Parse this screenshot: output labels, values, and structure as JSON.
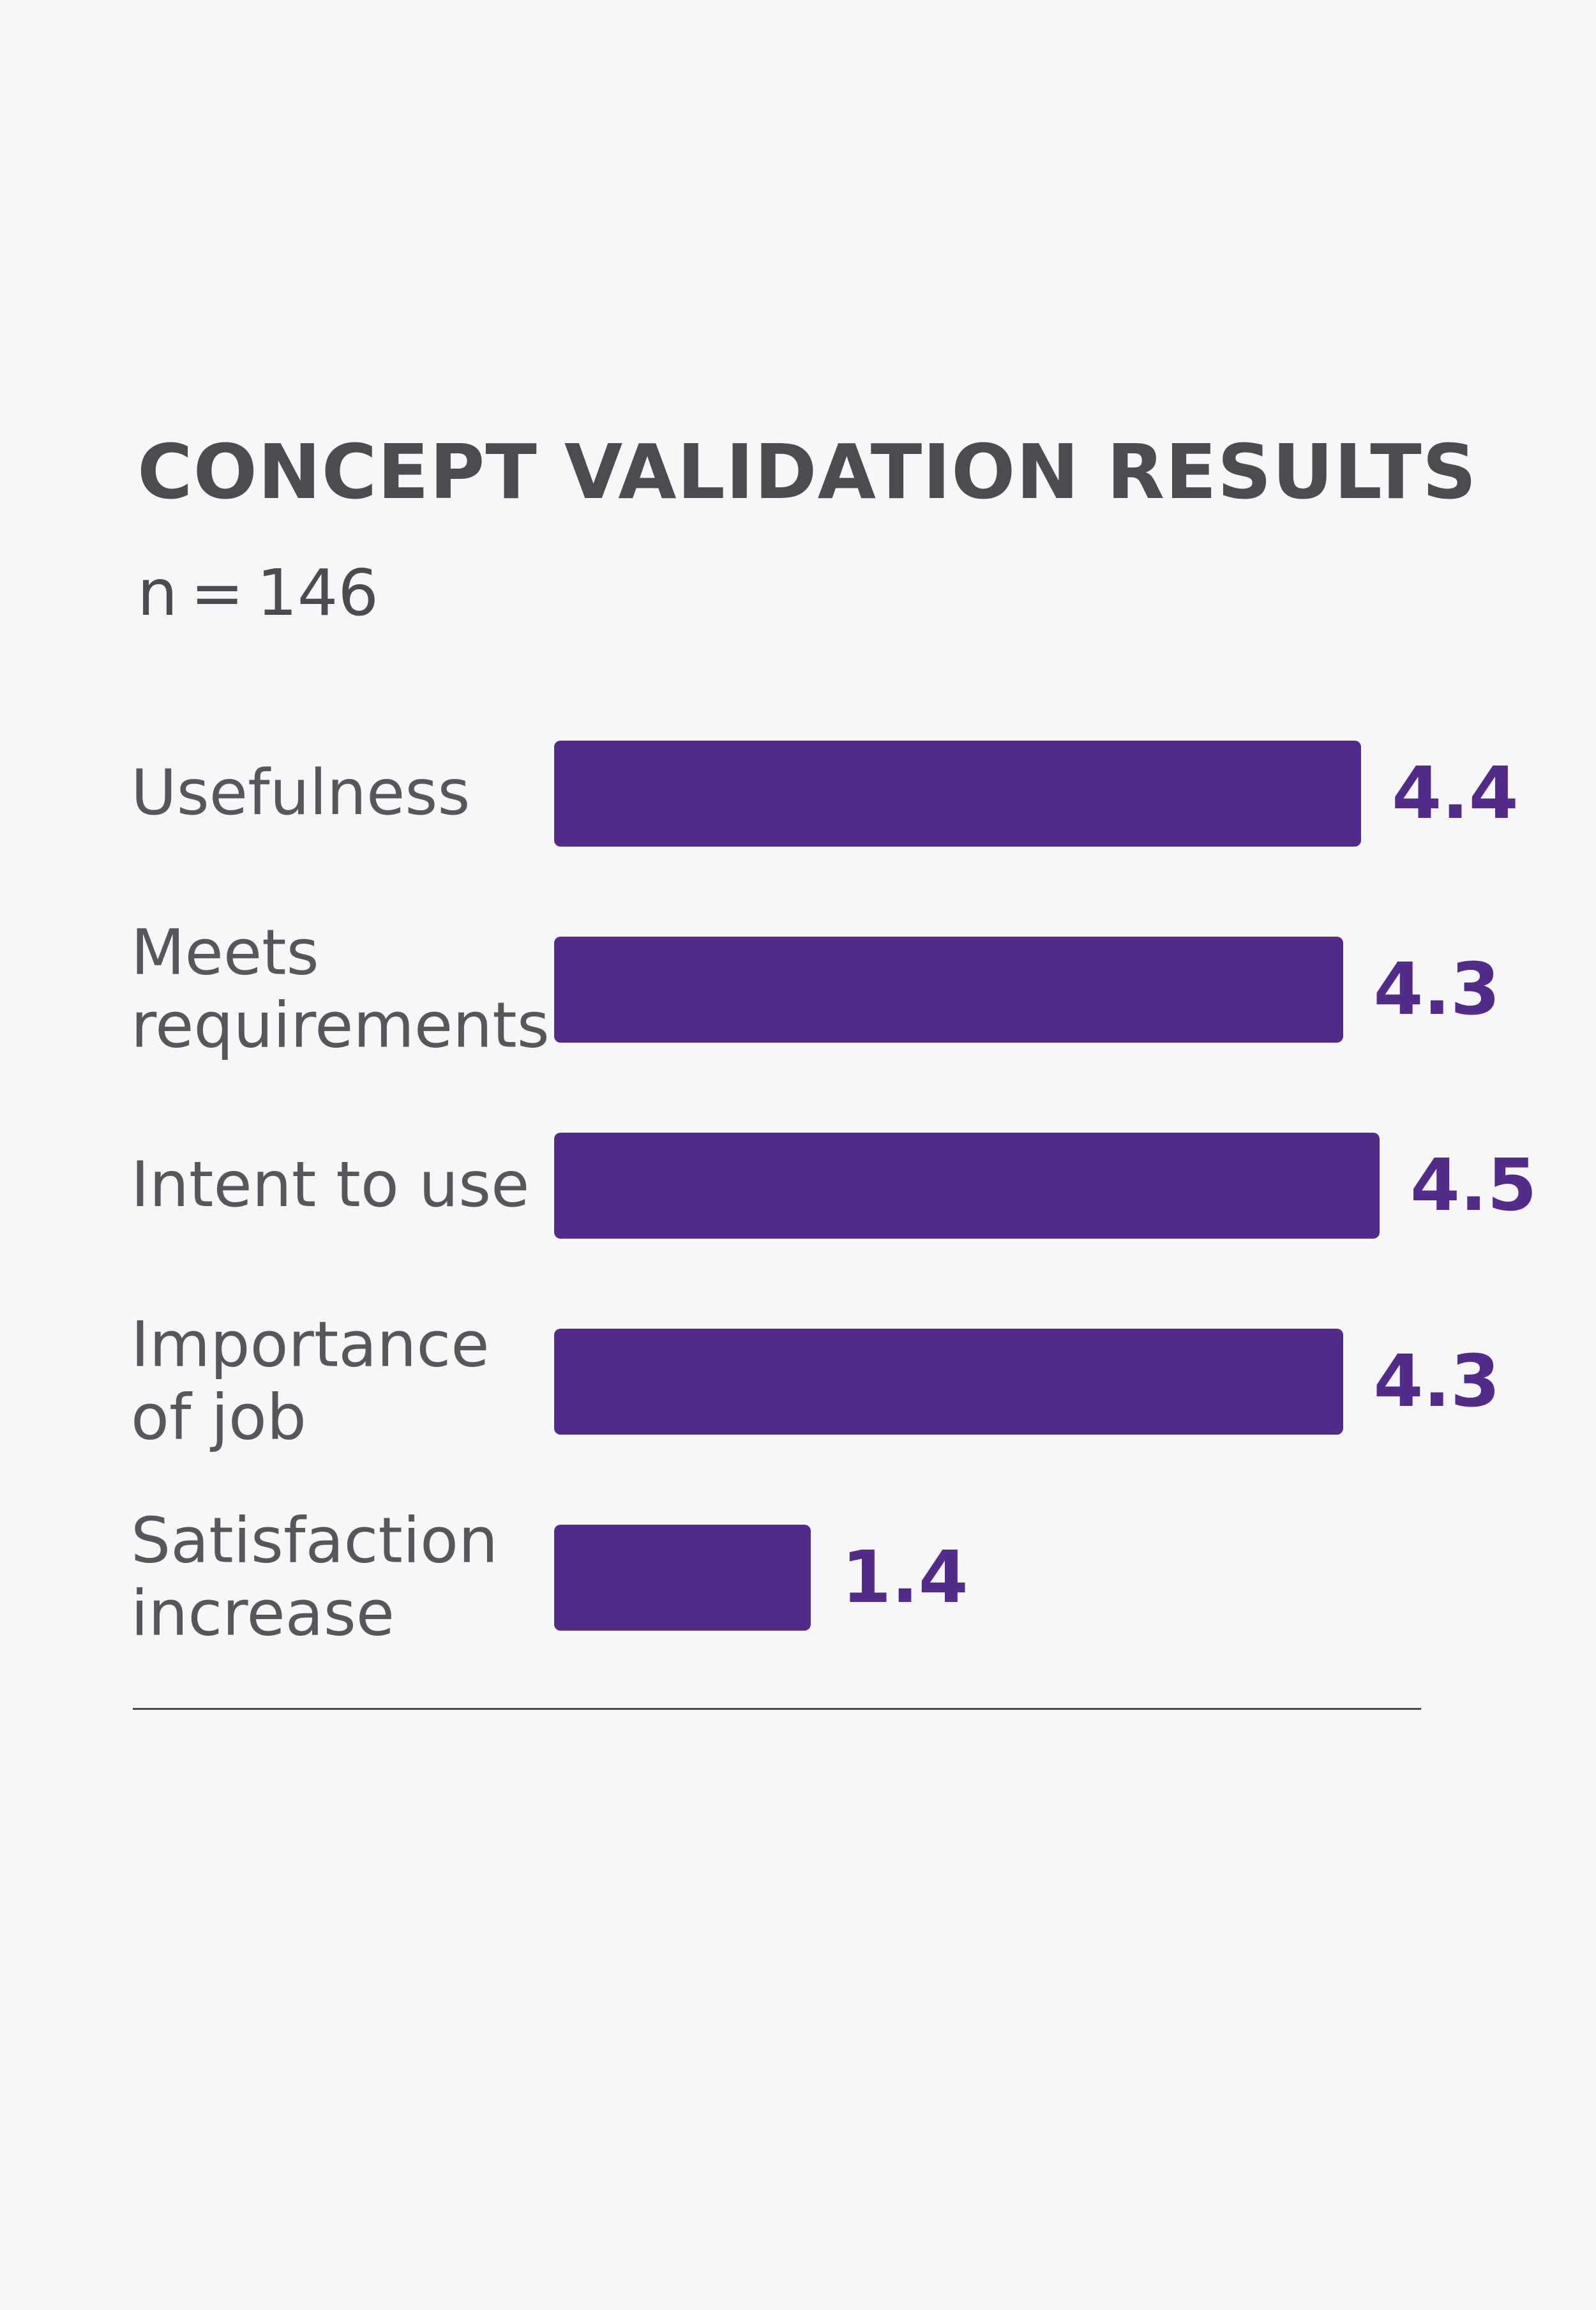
{
  "chart_data": {
    "type": "bar",
    "orientation": "horizontal",
    "title": "CONCEPT VALIDATION RESULTS",
    "subtitle": "n = 146",
    "categories": [
      "Usefulness",
      "Meets requirements",
      "Intent to use",
      "Importance of job",
      "Satisfaction increase"
    ],
    "values": [
      4.4,
      4.3,
      4.5,
      4.3,
      1.4
    ],
    "value_labels": [
      "4.4",
      "4.3",
      "4.5",
      "4.3",
      "1.4"
    ],
    "xlabel": "",
    "ylabel": "",
    "grid": false,
    "legend": "none"
  },
  "colors": {
    "bar": "#522c8a",
    "value_label": "#522c8a",
    "text": "#4a4c52",
    "background": "#f7f7f9"
  }
}
